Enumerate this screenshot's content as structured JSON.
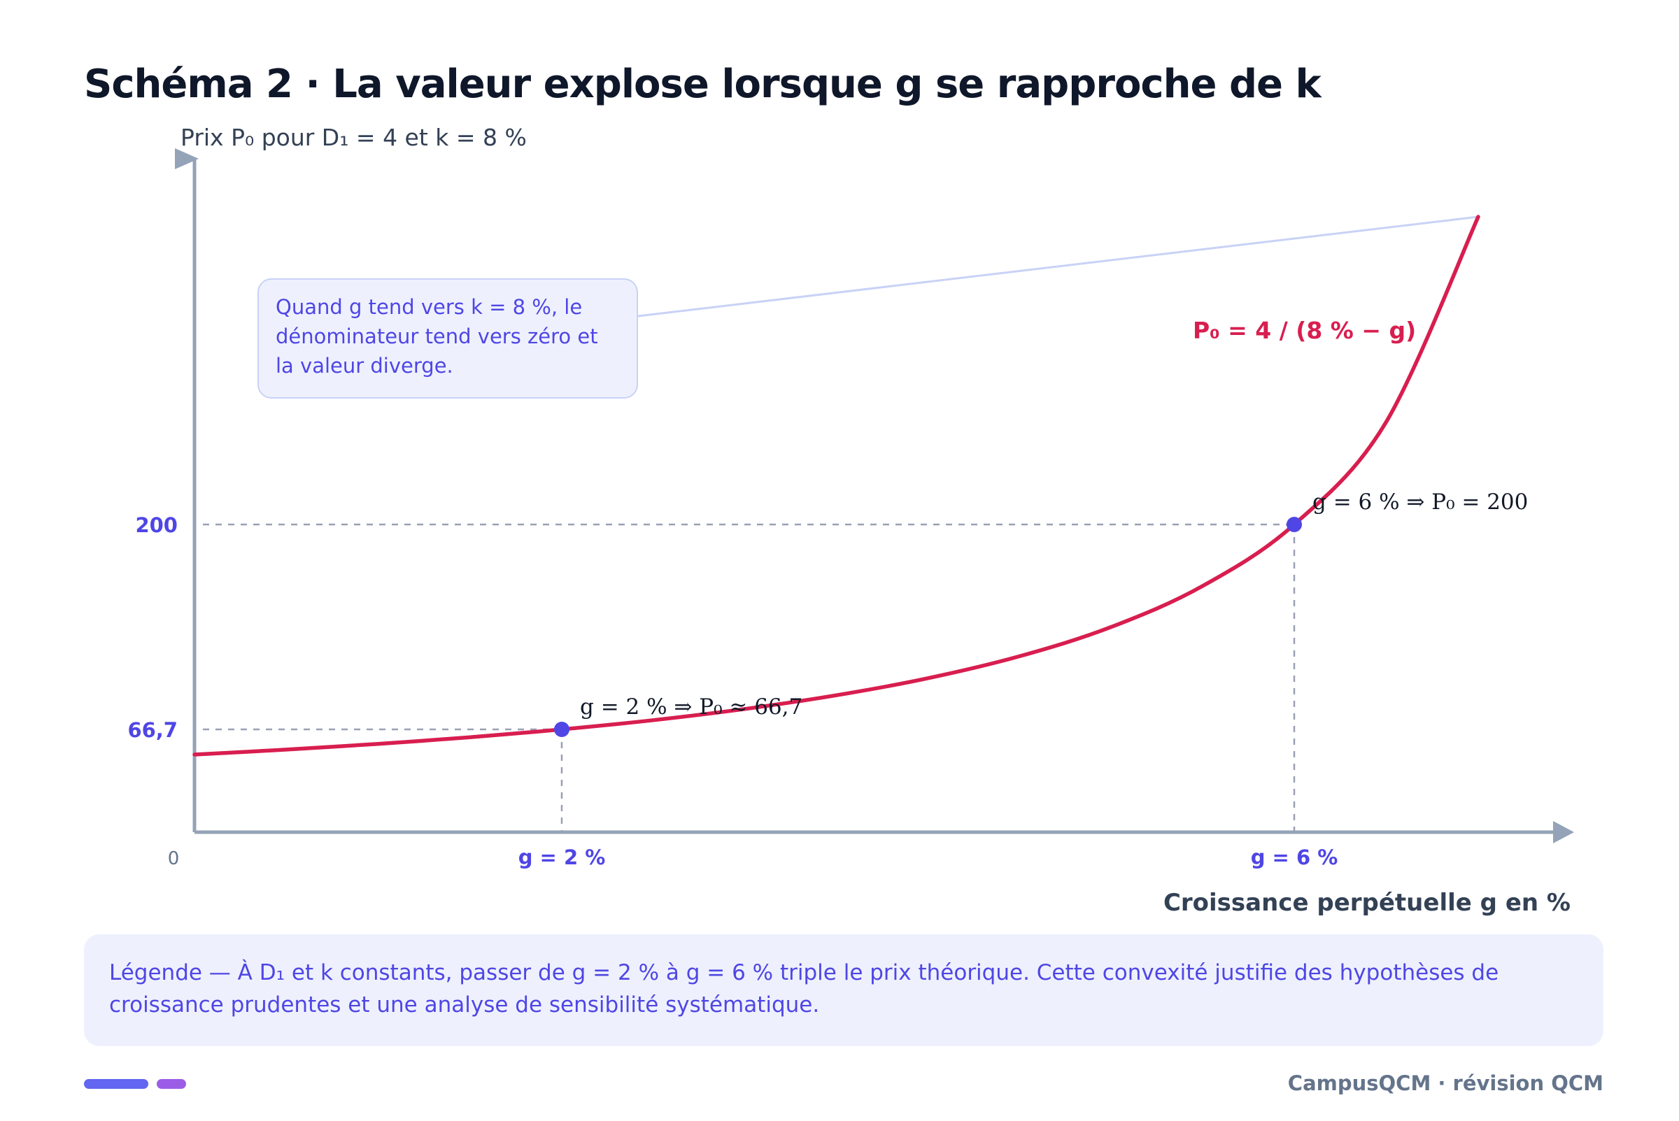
{
  "page": {
    "title": "Schéma 2 · La valeur explose lorsque g se rapproche de k",
    "footer": "CampusQCM · révision QCM"
  },
  "chart_data": {
    "type": "line",
    "ylabel": "Prix P₀ pour D₁ = 4 et k = 8 %",
    "xlabel": "Croissance perpétuelle g en %",
    "origin_label": "0",
    "x_ticks": [
      {
        "x": 2,
        "label": "g = 2 %"
      },
      {
        "x": 6,
        "label": "g = 6 %"
      }
    ],
    "y_ticks": [
      {
        "y": 66.7,
        "label": "66,7"
      },
      {
        "y": 200,
        "label": "200"
      }
    ],
    "series": [
      {
        "name": "P₀ = 4 / (8 % − g)",
        "color": "#d81e4f",
        "x": [
          0,
          0.5,
          1,
          1.5,
          2,
          2.5,
          3,
          3.5,
          4,
          4.5,
          5,
          5.5,
          6,
          6.5,
          7
        ],
        "y": [
          50,
          53.3,
          57.1,
          61.5,
          66.7,
          72.7,
          80,
          88.9,
          100,
          114.3,
          133.3,
          160,
          200,
          266.7,
          400
        ]
      }
    ],
    "points": [
      {
        "x": 2,
        "y": 66.7,
        "label": "g = 2 % ⇒ P₀ ≈ 66,7",
        "color": "#4f46e5"
      },
      {
        "x": 6,
        "y": 200,
        "label": "g = 6 % ⇒ P₀ = 200",
        "color": "#4f46e5"
      }
    ],
    "annotation": "Quand g tend vers k = 8 %, le dénominateur tend vers zéro et la valeur diverge.",
    "legend_note": "Légende — À D₁ et k constants, passer de g = 2 % à g = 6 % triple le prix théorique. Cette convexité justifie des hypothèses de croissance prudentes et une analyse de sensibilité systématique.",
    "colors": {
      "curve": "#d81e4f",
      "points": "#4f46e5",
      "axis": "#94a3b8",
      "guide": "#9aa0b4",
      "callout_line": "#c9d2f6",
      "tick_label": "#4f46e5"
    }
  }
}
